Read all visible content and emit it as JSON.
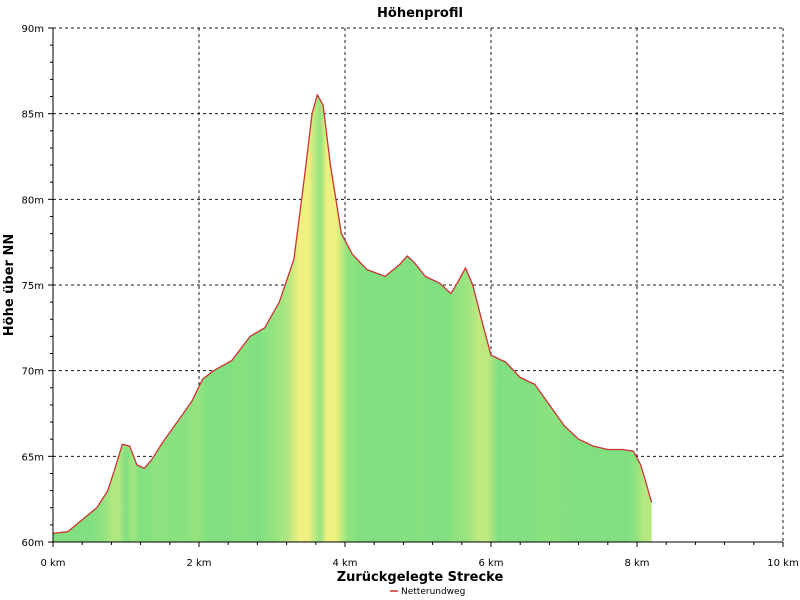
{
  "chart_data": {
    "type": "area",
    "title": "Höhenprofil",
    "xlabel": "Zurückgelegte Strecke",
    "ylabel": "Höhe über NN",
    "xlim": [
      0,
      10
    ],
    "ylim": [
      60,
      90
    ],
    "x_ticks": [
      0,
      2,
      4,
      6,
      8,
      10
    ],
    "x_tick_labels": [
      "0 km",
      "2 km",
      "4 km",
      "6 km",
      "8 km",
      "10 km"
    ],
    "y_ticks": [
      60,
      65,
      70,
      75,
      80,
      85,
      90
    ],
    "y_tick_labels": [
      "60m",
      "65m",
      "70m",
      "75m",
      "80m",
      "85m",
      "90m"
    ],
    "grid": true,
    "legend_position": "bottom-center",
    "series": [
      {
        "name": "Netterundweg",
        "line_color": "#cc3333",
        "fill_color": "#80e080",
        "steep_color": "#f0f080",
        "points": [
          [
            0.0,
            60.5
          ],
          [
            0.2,
            60.6
          ],
          [
            0.4,
            61.3
          ],
          [
            0.6,
            62.0
          ],
          [
            0.75,
            63.0
          ],
          [
            0.85,
            64.3
          ],
          [
            0.95,
            65.7
          ],
          [
            1.05,
            65.6
          ],
          [
            1.15,
            64.5
          ],
          [
            1.25,
            64.3
          ],
          [
            1.35,
            64.8
          ],
          [
            1.5,
            65.8
          ],
          [
            1.7,
            67.0
          ],
          [
            1.9,
            68.2
          ],
          [
            2.05,
            69.5
          ],
          [
            2.2,
            70.0
          ],
          [
            2.45,
            70.6
          ],
          [
            2.7,
            72.0
          ],
          [
            2.9,
            72.5
          ],
          [
            3.1,
            74.0
          ],
          [
            3.3,
            76.5
          ],
          [
            3.45,
            81.5
          ],
          [
            3.55,
            85.0
          ],
          [
            3.62,
            86.1
          ],
          [
            3.7,
            85.5
          ],
          [
            3.8,
            82.0
          ],
          [
            3.95,
            78.0
          ],
          [
            4.1,
            76.8
          ],
          [
            4.3,
            75.9
          ],
          [
            4.55,
            75.5
          ],
          [
            4.75,
            76.2
          ],
          [
            4.85,
            76.7
          ],
          [
            4.95,
            76.3
          ],
          [
            5.1,
            75.5
          ],
          [
            5.3,
            75.1
          ],
          [
            5.45,
            74.5
          ],
          [
            5.55,
            75.2
          ],
          [
            5.65,
            76.0
          ],
          [
            5.75,
            75.0
          ],
          [
            5.9,
            72.5
          ],
          [
            6.0,
            70.9
          ],
          [
            6.2,
            70.5
          ],
          [
            6.4,
            69.6
          ],
          [
            6.6,
            69.2
          ],
          [
            6.8,
            68.0
          ],
          [
            7.0,
            66.8
          ],
          [
            7.2,
            66.0
          ],
          [
            7.4,
            65.6
          ],
          [
            7.6,
            65.4
          ],
          [
            7.8,
            65.4
          ],
          [
            7.95,
            65.3
          ],
          [
            8.05,
            64.5
          ],
          [
            8.12,
            63.5
          ],
          [
            8.2,
            62.3
          ]
        ]
      }
    ]
  }
}
